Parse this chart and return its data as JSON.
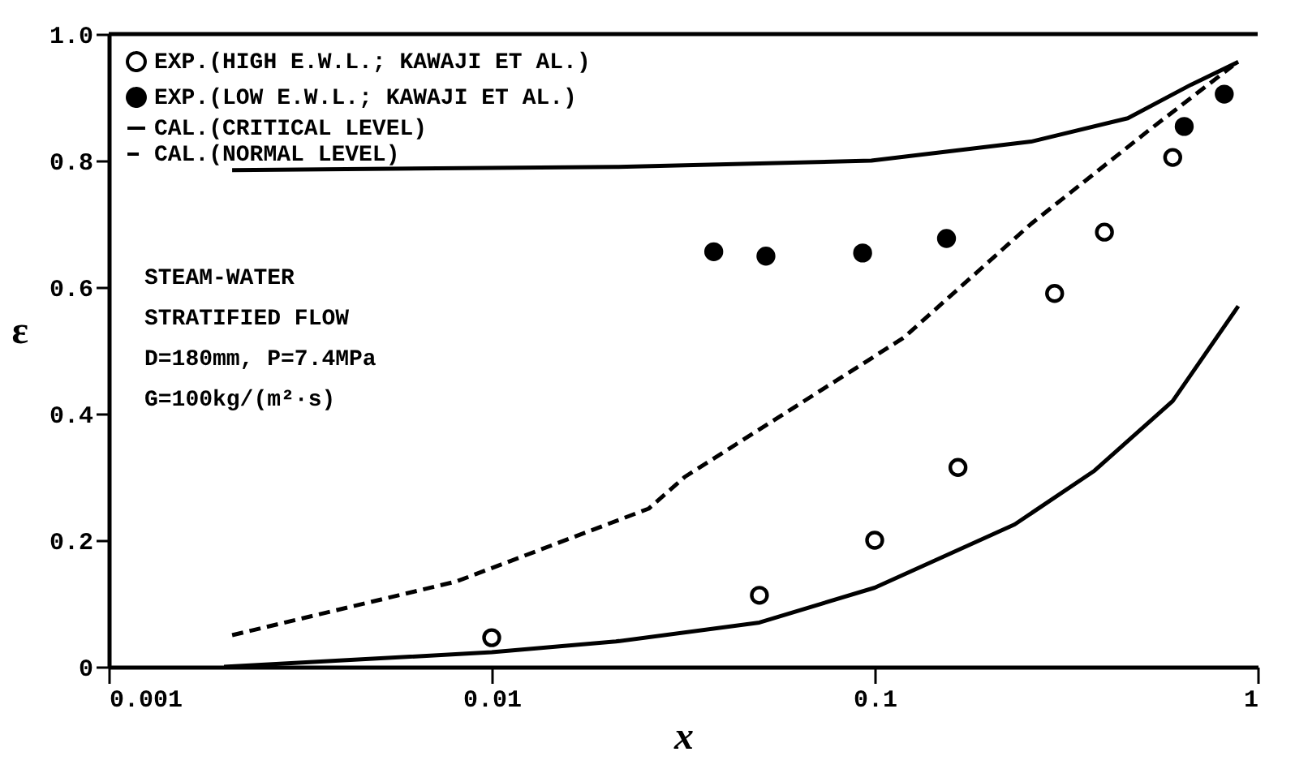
{
  "chart_data": {
    "type": "scatter",
    "xlabel": "x",
    "ylabel": "ε",
    "log": "x",
    "xlim": [
      0.001,
      1
    ],
    "xticks": [
      0.001,
      0.01,
      0.1,
      1
    ],
    "ylim": [
      0,
      1.0
    ],
    "yticks": [
      {
        "value": 0,
        "label": "0"
      },
      0.2,
      0.4,
      0.6,
      0.8,
      {
        "value": 1.0,
        "label": "1.0"
      }
    ],
    "grid": false,
    "legend": "top left",
    "annotations": [
      "STEAM-WATER",
      "STRATIFIED FLOW",
      "D=180mm, P=7.4MPa",
      "G=100kg/(m²·s)"
    ],
    "series": [
      {
        "name": "EXP.(HIGH E.W.L.; KAWAJI ET AL.)",
        "marker": "circle",
        "color": "#ffffff",
        "x": [
          0.01,
          0.05,
          0.1,
          0.165,
          0.295,
          0.398,
          0.6
        ],
        "values": [
          0.046,
          0.113,
          0.2,
          0.315,
          0.59,
          0.687,
          0.805
        ]
      },
      {
        "name": "EXP.(LOW E.W.L.; KAWAJI ET AL.)",
        "marker": "circle",
        "color": "#000000",
        "x": [
          0.038,
          0.052,
          0.093,
          0.154,
          0.643,
          0.818
        ],
        "values": [
          0.656,
          0.649,
          0.654,
          0.677,
          0.854,
          0.905
        ]
      },
      {
        "name": "CAL.(CRITICAL LEVEL)",
        "type": "line",
        "line_style": "solid",
        "color": "#000000",
        "x": [
          0.0021,
          0.0211,
          0.098,
          0.256,
          0.458,
          0.67,
          0.89,
          null,
          0.002,
          0.01,
          0.0211,
          0.05,
          0.1,
          0.232,
          0.375,
          0.6,
          0.89
        ],
        "values": [
          0.785,
          0.79,
          0.8,
          0.83,
          0.867,
          0.92,
          0.956,
          null,
          0.0,
          0.023,
          0.04,
          0.07,
          0.125,
          0.225,
          0.31,
          0.42,
          0.57
        ]
      },
      {
        "name": "CAL.(NORMAL LEVEL)",
        "type": "line",
        "line_style": "dashed",
        "color": "#000000",
        "x": [
          0.0021,
          0.0081,
          0.0257,
          0.0319,
          0.119,
          0.256,
          0.515,
          0.861
        ],
        "values": [
          0.05,
          0.135,
          0.25,
          0.3,
          0.52,
          0.7,
          0.846,
          0.95
        ]
      }
    ]
  }
}
